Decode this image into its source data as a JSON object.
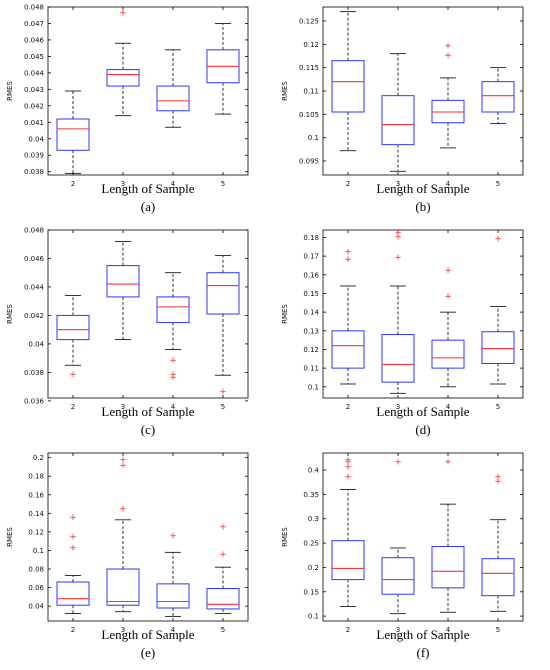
{
  "chart_data": [
    {
      "type": "boxplot",
      "panel_label": "(a)",
      "xlabel": "Length of Sample",
      "ylabel": "RMES",
      "categories": [
        "2",
        "3",
        "4",
        "5"
      ],
      "ylim": [
        0.0378,
        0.048
      ],
      "yticks": [
        0.038,
        0.039,
        0.04,
        0.041,
        0.042,
        0.043,
        0.044,
        0.045,
        0.046,
        0.047,
        0.048
      ],
      "yticklabels": [
        "0.038",
        "0.039",
        "0.04",
        "0.041",
        "0.042",
        "0.043",
        "0.044",
        "0.045",
        "0.046",
        "0.047",
        "0.048"
      ],
      "boxes": [
        {
          "category": "2",
          "q1": 0.0393,
          "median": 0.0406,
          "q3": 0.0412,
          "whisker_low": 0.0379,
          "whisker_high": 0.0429,
          "outliers": []
        },
        {
          "category": "3",
          "q1": 0.0432,
          "median": 0.0439,
          "q3": 0.0442,
          "whisker_low": 0.0414,
          "whisker_high": 0.0458,
          "outliers": [
            0.0476
          ]
        },
        {
          "category": "4",
          "q1": 0.0417,
          "median": 0.0423,
          "q3": 0.0432,
          "whisker_low": 0.0407,
          "whisker_high": 0.0454,
          "outliers": []
        },
        {
          "category": "5",
          "q1": 0.0434,
          "median": 0.0444,
          "q3": 0.0454,
          "whisker_low": 0.0415,
          "whisker_high": 0.047,
          "outliers": []
        }
      ]
    },
    {
      "type": "boxplot",
      "panel_label": "(b)",
      "xlabel": "Length of Sample",
      "ylabel": "RMES",
      "categories": [
        "2",
        "3",
        "4",
        "5"
      ],
      "ylim": [
        0.092,
        0.128
      ],
      "yticks": [
        0.095,
        0.1,
        0.105,
        0.11,
        0.115,
        0.12,
        0.125
      ],
      "yticklabels": [
        "0.095",
        "0.1",
        "0.105",
        "0.11",
        "0.115",
        "0.12",
        "0.125"
      ],
      "boxes": [
        {
          "category": "2",
          "q1": 0.1055,
          "median": 0.112,
          "q3": 0.1165,
          "whisker_low": 0.0972,
          "whisker_high": 0.127,
          "outliers": []
        },
        {
          "category": "3",
          "q1": 0.0985,
          "median": 0.1028,
          "q3": 0.109,
          "whisker_low": 0.0928,
          "whisker_high": 0.118,
          "outliers": []
        },
        {
          "category": "4",
          "q1": 0.1032,
          "median": 0.1055,
          "q3": 0.108,
          "whisker_low": 0.0978,
          "whisker_high": 0.1128,
          "outliers": [
            0.1175,
            0.1195
          ]
        },
        {
          "category": "5",
          "q1": 0.1055,
          "median": 0.109,
          "q3": 0.112,
          "whisker_low": 0.103,
          "whisker_high": 0.115,
          "outliers": []
        }
      ]
    },
    {
      "type": "boxplot",
      "panel_label": "(c)",
      "xlabel": "Length of Sample",
      "ylabel": "RMES",
      "categories": [
        "2",
        "3",
        "4",
        "5"
      ],
      "ylim": [
        0.0362,
        0.048
      ],
      "yticks": [
        0.036,
        0.038,
        0.04,
        0.042,
        0.044,
        0.046,
        0.048
      ],
      "yticklabels": [
        "0.036",
        "0.038",
        "0.04",
        "0.042",
        "0.044",
        "0.046",
        "0.048"
      ],
      "boxes": [
        {
          "category": "2",
          "q1": 0.0403,
          "median": 0.041,
          "q3": 0.042,
          "whisker_low": 0.0385,
          "whisker_high": 0.0434,
          "outliers": [
            0.0378
          ]
        },
        {
          "category": "3",
          "q1": 0.0433,
          "median": 0.0442,
          "q3": 0.0455,
          "whisker_low": 0.0403,
          "whisker_high": 0.0472,
          "outliers": []
        },
        {
          "category": "4",
          "q1": 0.0415,
          "median": 0.0426,
          "q3": 0.0433,
          "whisker_low": 0.0396,
          "whisker_high": 0.045,
          "outliers": [
            0.0388,
            0.0378,
            0.0376
          ]
        },
        {
          "category": "5",
          "q1": 0.0421,
          "median": 0.0441,
          "q3": 0.045,
          "whisker_low": 0.0378,
          "whisker_high": 0.0462,
          "outliers": [
            0.0366
          ]
        }
      ]
    },
    {
      "type": "boxplot",
      "panel_label": "(d)",
      "xlabel": "Length of Sample",
      "ylabel": "RMES",
      "categories": [
        "2",
        "3",
        "4",
        "5"
      ],
      "ylim": [
        0.094,
        0.184
      ],
      "yticks": [
        0.1,
        0.11,
        0.12,
        0.13,
        0.14,
        0.15,
        0.16,
        0.17,
        0.18
      ],
      "yticklabels": [
        "0.1",
        "0.11",
        "0.12",
        "0.13",
        "0.14",
        "0.15",
        "0.16",
        "0.17",
        "0.18"
      ],
      "boxes": [
        {
          "category": "2",
          "q1": 0.11,
          "median": 0.122,
          "q3": 0.13,
          "whisker_low": 0.1015,
          "whisker_high": 0.154,
          "outliers": [
            0.168,
            0.172
          ]
        },
        {
          "category": "3",
          "q1": 0.1025,
          "median": 0.112,
          "q3": 0.128,
          "whisker_low": 0.0965,
          "whisker_high": 0.154,
          "outliers": [
            0.169,
            0.18,
            0.182
          ]
        },
        {
          "category": "4",
          "q1": 0.11,
          "median": 0.1155,
          "q3": 0.125,
          "whisker_low": 0.1,
          "whisker_high": 0.14,
          "outliers": [
            0.148,
            0.162
          ]
        },
        {
          "category": "5",
          "q1": 0.1125,
          "median": 0.1205,
          "q3": 0.1295,
          "whisker_low": 0.1015,
          "whisker_high": 0.143,
          "outliers": [
            0.179
          ]
        }
      ]
    },
    {
      "type": "boxplot",
      "panel_label": "(e)",
      "xlabel": "Length of Sample",
      "ylabel": "RMES",
      "categories": [
        "2",
        "3",
        "4",
        "5"
      ],
      "ylim": [
        0.024,
        0.205
      ],
      "yticks": [
        0.04,
        0.06,
        0.08,
        0.1,
        0.12,
        0.14,
        0.16,
        0.18,
        0.2
      ],
      "yticklabels": [
        "0.04",
        "0.06",
        "0.08",
        "0.1",
        "0.12",
        "0.14",
        "0.16",
        "0.18",
        "0.2"
      ],
      "boxes": [
        {
          "category": "2",
          "q1": 0.041,
          "median": 0.048,
          "q3": 0.066,
          "whisker_low": 0.032,
          "whisker_high": 0.073,
          "outliers": [
            0.102,
            0.114,
            0.135
          ]
        },
        {
          "category": "3",
          "q1": 0.041,
          "median": 0.045,
          "q3": 0.08,
          "whisker_low": 0.034,
          "whisker_high": 0.133,
          "outliers": [
            0.144,
            0.191,
            0.197
          ]
        },
        {
          "category": "4",
          "q1": 0.038,
          "median": 0.045,
          "q3": 0.064,
          "whisker_low": 0.029,
          "whisker_high": 0.098,
          "outliers": [
            0.115
          ]
        },
        {
          "category": "5",
          "q1": 0.037,
          "median": 0.042,
          "q3": 0.059,
          "whisker_low": 0.032,
          "whisker_high": 0.082,
          "outliers": [
            0.095,
            0.125
          ]
        }
      ]
    },
    {
      "type": "boxplot",
      "panel_label": "(f)",
      "xlabel": "Length of Sample",
      "ylabel": "RMES",
      "categories": [
        "2",
        "3",
        "4",
        "5"
      ],
      "ylim": [
        0.09,
        0.435
      ],
      "yticks": [
        0.1,
        0.15,
        0.2,
        0.25,
        0.3,
        0.35,
        0.4
      ],
      "yticklabels": [
        "0.1",
        "0.15",
        "0.2",
        "0.25",
        "0.3",
        "0.35",
        "0.4"
      ],
      "boxes": [
        {
          "category": "2",
          "q1": 0.175,
          "median": 0.198,
          "q3": 0.255,
          "whisker_low": 0.12,
          "whisker_high": 0.36,
          "outliers": [
            0.385,
            0.405,
            0.415,
            0.42
          ]
        },
        {
          "category": "3",
          "q1": 0.145,
          "median": 0.175,
          "q3": 0.22,
          "whisker_low": 0.105,
          "whisker_high": 0.24,
          "outliers": [
            0.415
          ]
        },
        {
          "category": "4",
          "q1": 0.158,
          "median": 0.192,
          "q3": 0.243,
          "whisker_low": 0.108,
          "whisker_high": 0.33,
          "outliers": [
            0.415
          ]
        },
        {
          "category": "5",
          "q1": 0.142,
          "median": 0.188,
          "q3": 0.218,
          "whisker_low": 0.11,
          "whisker_high": 0.298,
          "outliers": [
            0.375,
            0.385
          ]
        }
      ]
    }
  ],
  "colors": {
    "box": "#2f35ff",
    "median": "#ff3131",
    "outlier": "#ff2b2b",
    "whisker": "#000000"
  }
}
